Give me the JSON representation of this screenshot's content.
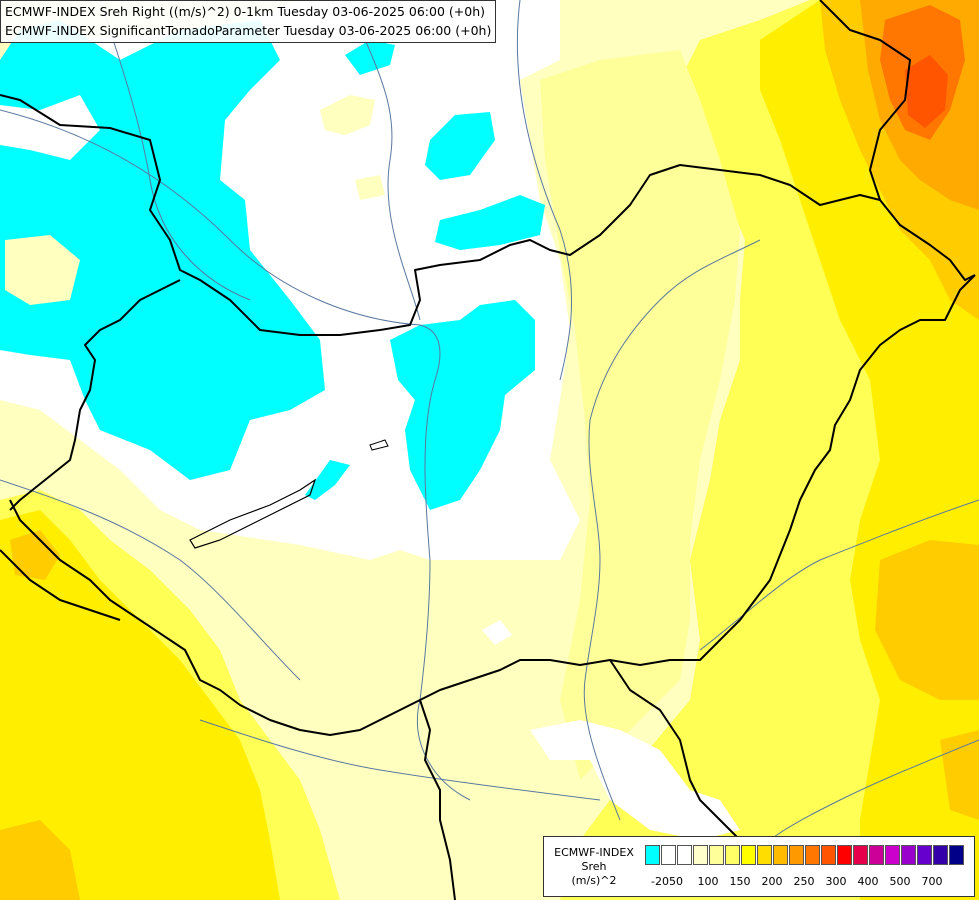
{
  "header": {
    "line1": "ECMWF-INDEX Sreh Right ((m/s)^2) 0-1km Tuesday 03-06-2025 06:00 (+0h)",
    "line2": "ECMWF-INDEX SignificantTornadoParameter Tuesday 03-06-2025 06:00 (+0h)"
  },
  "legend": {
    "title_line1": "ECMWF-INDEX",
    "title_line2": "Sreh",
    "title_line3": "(m/s)^2",
    "colors": [
      "#00ffff",
      "#ffffff",
      "#ffffff",
      "#ffffcc",
      "#ffff99",
      "#ffff66",
      "#ffff00",
      "#ffdd00",
      "#ffbb00",
      "#ff9900",
      "#ff7700",
      "#ff5500",
      "#ff0000",
      "#e6004c",
      "#cc0099",
      "#cc00cc",
      "#9900cc",
      "#6600cc",
      "#3300aa",
      "#000088"
    ],
    "labels": [
      "-20",
      "50",
      "100",
      "150",
      "200",
      "250",
      "300",
      "400",
      "500",
      "700"
    ]
  },
  "map": {
    "palette": {
      "white": "#ffffff",
      "cyan": "#00ffff",
      "pale_yellow": "#ffffc0",
      "light_yellow": "#ffff99",
      "yellow": "#ffff55",
      "gold": "#ffee00",
      "amber": "#ffcc00",
      "orange": "#ffaa00",
      "dark_orange": "#ff7700",
      "red_orange": "#ff5500",
      "border": "#000000",
      "river": "#5a78a0"
    }
  }
}
